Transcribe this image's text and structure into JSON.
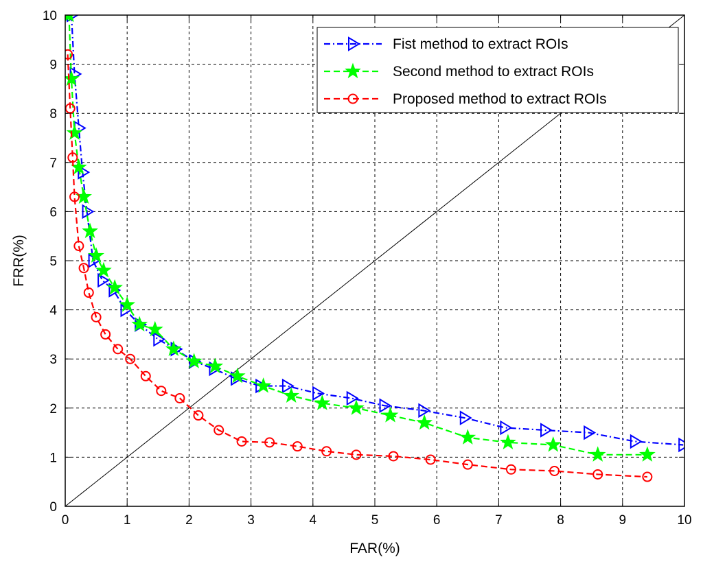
{
  "chart_data": {
    "type": "line",
    "xlabel": "FAR(%)",
    "ylabel": "FRR(%)",
    "xlim": [
      0,
      10
    ],
    "ylim": [
      0,
      10
    ],
    "xticks": [
      "0",
      "1",
      "2",
      "3",
      "4",
      "5",
      "6",
      "7",
      "8",
      "9",
      "10"
    ],
    "yticks": [
      "0",
      "1",
      "2",
      "3",
      "4",
      "5",
      "6",
      "7",
      "8",
      "9",
      "10"
    ],
    "grid": true,
    "legend_position": "top-right",
    "reference_line": {
      "x": [
        0,
        10
      ],
      "y": [
        0,
        10
      ],
      "color": "#000000"
    },
    "series": [
      {
        "name": "Fist method to extract ROIs",
        "color": "#0000ff",
        "line_style": "dash-dot",
        "marker": "triangle-right",
        "x": [
          0.1,
          0.15,
          0.22,
          0.28,
          0.35,
          0.45,
          0.6,
          0.78,
          0.97,
          1.2,
          1.5,
          1.78,
          2.08,
          2.4,
          2.75,
          3.15,
          3.58,
          4.07,
          4.62,
          5.15,
          5.78,
          6.45,
          7.1,
          7.75,
          8.45,
          9.2,
          9.98
        ],
        "y": [
          10.0,
          8.8,
          7.7,
          6.8,
          6.0,
          5.0,
          4.6,
          4.4,
          4.0,
          3.7,
          3.4,
          3.2,
          2.95,
          2.8,
          2.6,
          2.45,
          2.45,
          2.3,
          2.2,
          2.05,
          1.95,
          1.8,
          1.6,
          1.55,
          1.5,
          1.32,
          1.25
        ]
      },
      {
        "name": "Second method to extract ROIs",
        "color": "#00ff00",
        "line_style": "dashed",
        "marker": "star",
        "x": [
          0.06,
          0.1,
          0.15,
          0.22,
          0.3,
          0.4,
          0.5,
          0.62,
          0.8,
          1.0,
          1.2,
          1.45,
          1.75,
          2.08,
          2.42,
          2.78,
          3.2,
          3.65,
          4.15,
          4.7,
          5.25,
          5.8,
          6.5,
          7.15,
          7.88,
          8.6,
          9.4
        ],
        "y": [
          10.0,
          8.7,
          7.6,
          6.9,
          6.3,
          5.6,
          5.1,
          4.8,
          4.45,
          4.1,
          3.7,
          3.6,
          3.2,
          2.95,
          2.85,
          2.65,
          2.45,
          2.25,
          2.1,
          2.0,
          1.85,
          1.7,
          1.4,
          1.3,
          1.25,
          1.05,
          1.05
        ]
      },
      {
        "name": "Proposed method to extract ROIs",
        "color": "#ff0000",
        "line_style": "dashed",
        "marker": "circle",
        "x": [
          0.04,
          0.08,
          0.12,
          0.15,
          0.22,
          0.3,
          0.38,
          0.5,
          0.65,
          0.85,
          1.05,
          1.3,
          1.55,
          1.85,
          2.15,
          2.48,
          2.85,
          3.3,
          3.75,
          4.22,
          4.7,
          5.3,
          5.9,
          6.5,
          7.2,
          7.9,
          8.6,
          9.4
        ],
        "y": [
          9.2,
          8.1,
          7.1,
          6.3,
          5.3,
          4.85,
          4.35,
          3.85,
          3.5,
          3.2,
          3.0,
          2.65,
          2.35,
          2.2,
          1.85,
          1.55,
          1.32,
          1.3,
          1.22,
          1.12,
          1.05,
          1.02,
          0.95,
          0.85,
          0.75,
          0.72,
          0.65,
          0.6
        ]
      }
    ]
  }
}
